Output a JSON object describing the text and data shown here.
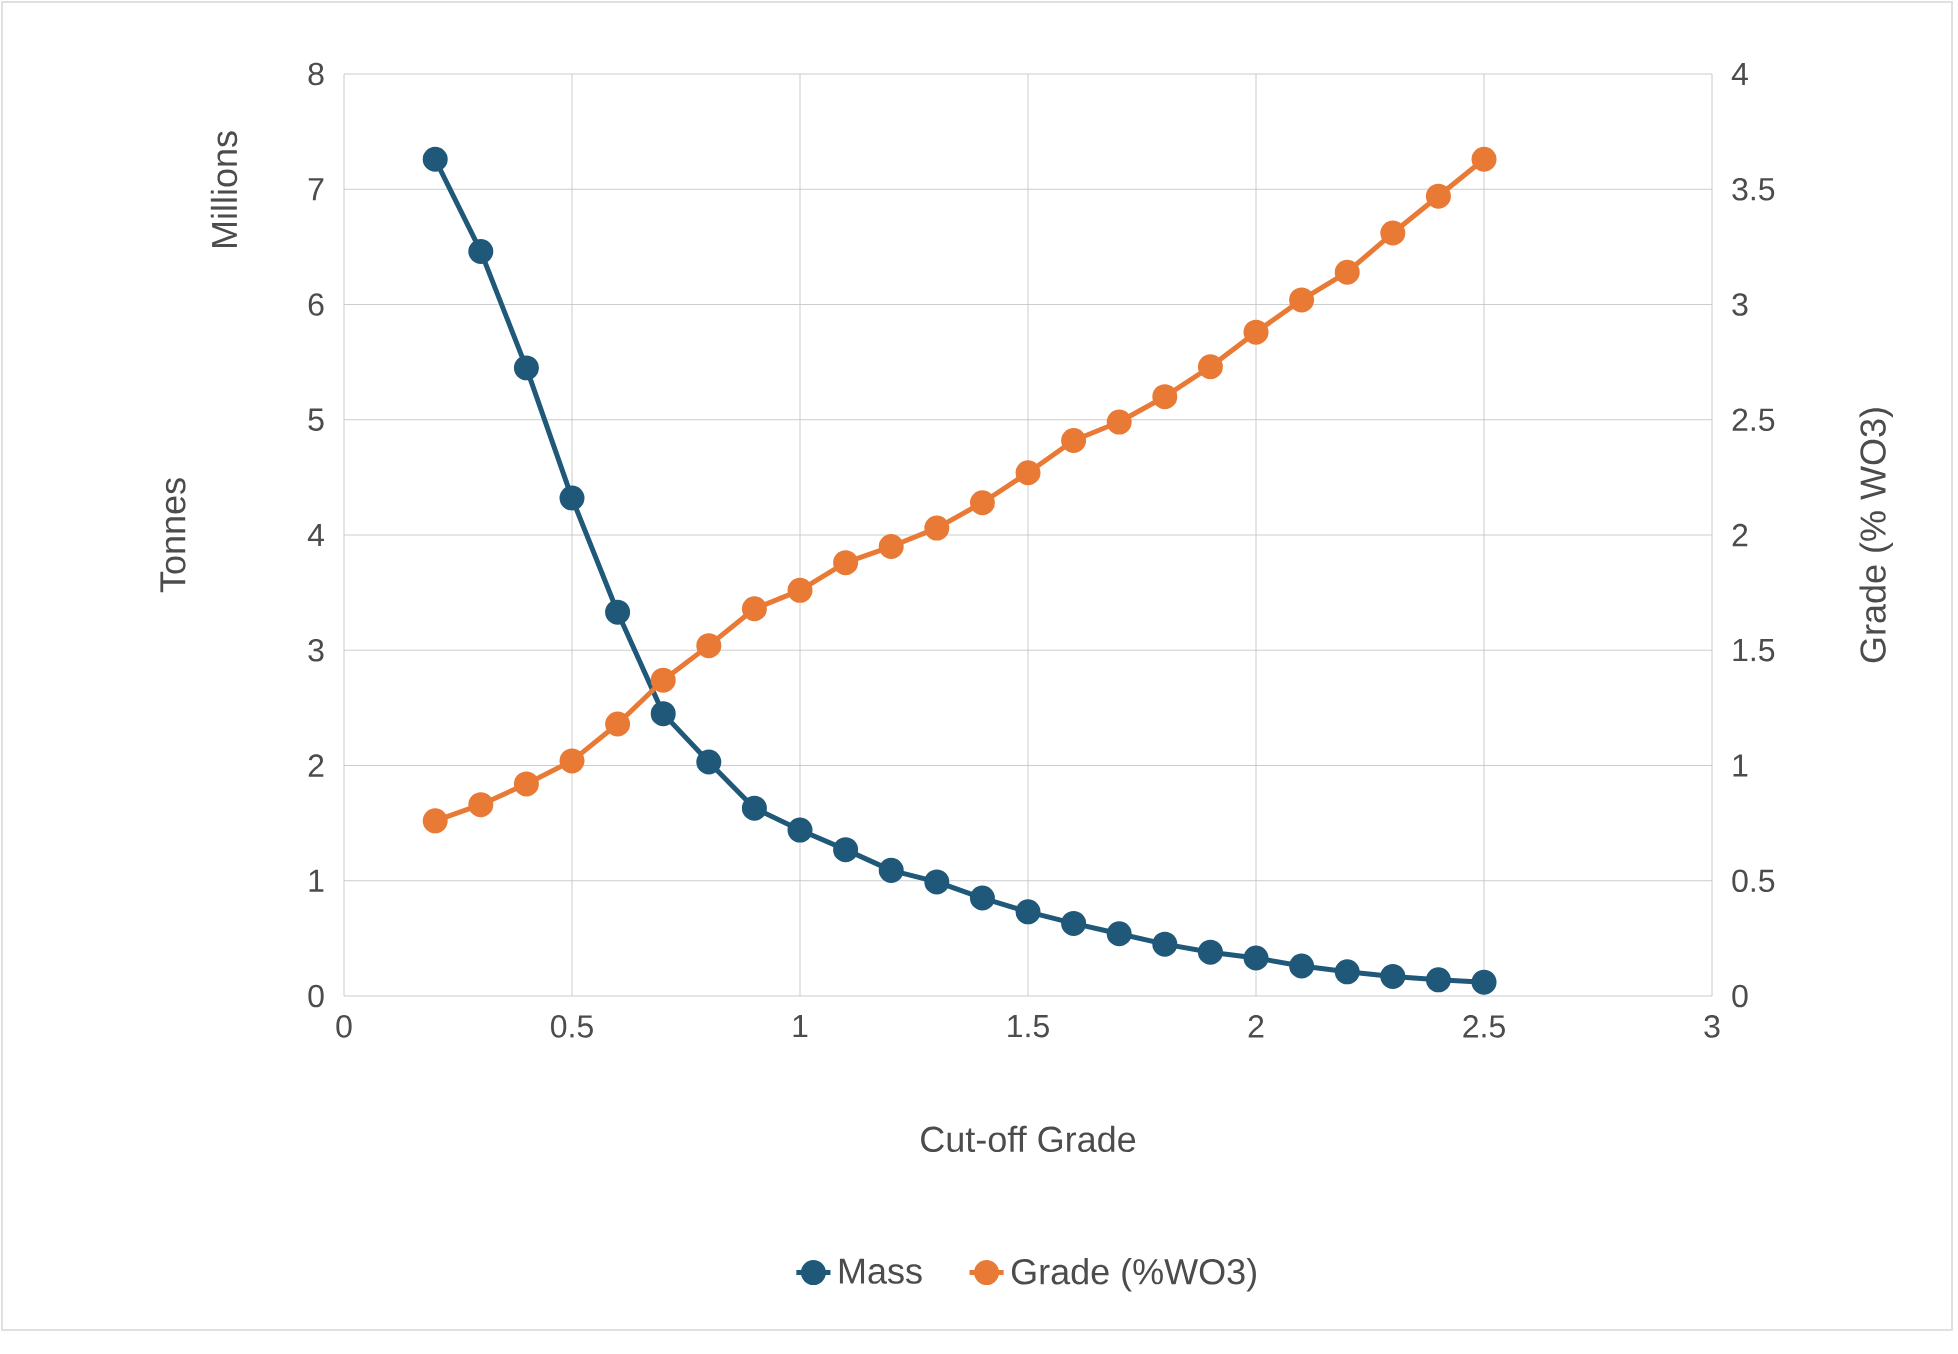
{
  "chart_data": {
    "type": "line",
    "xlabel": "Cut-off Grade",
    "ylabel": "Tonnes",
    "y2label": "Grade (% WO3)",
    "annotations": [
      "Millions"
    ],
    "x": [
      0.2,
      0.3,
      0.4,
      0.5,
      0.6,
      0.7,
      0.8,
      0.9,
      1.0,
      1.1,
      1.2,
      1.3,
      1.4,
      1.5,
      1.6,
      1.7,
      1.8,
      1.9,
      2.0,
      2.1,
      2.2,
      2.3,
      2.4,
      2.5
    ],
    "xlim": [
      0,
      3
    ],
    "xticks": [
      0,
      0.5,
      1,
      1.5,
      2,
      2.5,
      3
    ],
    "ylim": [
      0,
      8
    ],
    "yticks": [
      0,
      1,
      2,
      3,
      4,
      5,
      6,
      7,
      8
    ],
    "y2lim": [
      0,
      4
    ],
    "y2ticks": [
      0,
      0.5,
      1,
      1.5,
      2,
      2.5,
      3,
      3.5,
      4
    ],
    "grid": true,
    "legend": "bottom",
    "marker": "circle",
    "line_style": "solid",
    "series": [
      {
        "name": "Mass",
        "color": "#1f5878",
        "values": [
          7.26,
          6.46,
          5.45,
          4.32,
          3.33,
          2.45,
          2.03,
          1.63,
          1.44,
          1.27,
          1.09,
          0.99,
          0.85,
          0.73,
          0.63,
          0.54,
          0.45,
          0.38,
          0.33,
          0.26,
          0.21,
          0.17,
          0.14,
          0.12
        ]
      },
      {
        "name": "Grade (%WO3)",
        "color": "#e97a35",
        "axis": "y2",
        "values": [
          0.76,
          0.83,
          0.92,
          1.02,
          1.18,
          1.37,
          1.52,
          1.68,
          1.76,
          1.88,
          1.95,
          2.03,
          2.14,
          2.27,
          2.41,
          2.49,
          2.6,
          2.73,
          2.88,
          3.02,
          3.14,
          3.31,
          3.47,
          3.63
        ]
      }
    ]
  }
}
